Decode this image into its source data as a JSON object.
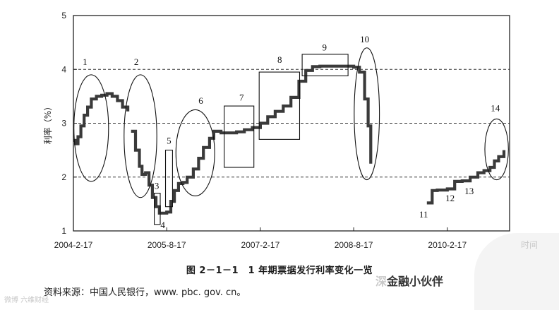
{
  "chart_data": {
    "type": "line",
    "title": "",
    "ylabel": "利率（%）",
    "xlabel": "时间",
    "ylim": [
      1,
      5
    ],
    "yticks": [
      1,
      2,
      3,
      4,
      5
    ],
    "grid_y_dashed": [
      2,
      3,
      4
    ],
    "x_tick_labels": [
      "2004-2-17",
      "2005-8-17",
      "2007-2-17",
      "2008-8-17",
      "2010-2-17"
    ],
    "x_tick_dates": [
      "2004-02-17",
      "2005-08-17",
      "2007-02-17",
      "2008-08-17",
      "2010-02-17"
    ],
    "xlim": [
      "2004-02-17",
      "2011-02-17"
    ],
    "series": [
      {
        "values": [
          [
            "2004-02-17",
            2.68
          ],
          [
            "2004-03-01",
            2.62
          ],
          [
            "2004-03-15",
            2.75
          ],
          [
            "2004-04-01",
            2.95
          ],
          [
            "2004-04-20",
            3.15
          ],
          [
            "2004-05-10",
            3.3
          ],
          [
            "2004-06-01",
            3.45
          ],
          [
            "2004-07-01",
            3.5
          ],
          [
            "2004-08-01",
            3.52
          ],
          [
            "2004-09-01",
            3.55
          ],
          [
            "2004-10-01",
            3.5
          ],
          [
            "2004-11-01",
            3.42
          ],
          [
            "2004-12-01",
            3.3
          ],
          [
            "2005-01-01",
            3.22
          ]
        ]
      },
      {
        "values": [
          [
            "2005-01-20",
            2.85
          ],
          [
            "2005-02-15",
            2.5
          ],
          [
            "2005-03-10",
            2.2
          ],
          [
            "2005-03-25",
            2.05
          ],
          [
            "2005-04-15",
            2.08
          ],
          [
            "2005-05-05",
            1.85
          ],
          [
            "2005-05-25",
            1.62
          ],
          [
            "2005-06-15",
            1.45
          ],
          [
            "2005-07-05",
            1.33
          ],
          [
            "2005-08-01",
            1.33
          ],
          [
            "2005-08-17",
            1.35
          ],
          [
            "2005-09-10",
            1.55
          ],
          [
            "2005-10-01",
            1.75
          ],
          [
            "2005-10-25",
            1.88
          ],
          [
            "2005-11-20",
            1.9
          ],
          [
            "2005-12-15",
            2.0
          ],
          [
            "2006-01-20",
            2.15
          ],
          [
            "2006-02-20",
            2.35
          ],
          [
            "2006-03-20",
            2.55
          ],
          [
            "2006-04-25",
            2.72
          ],
          [
            "2006-05-20",
            2.85
          ],
          [
            "2006-07-01",
            2.82
          ],
          [
            "2006-08-15",
            2.82
          ],
          [
            "2006-09-30",
            2.84
          ],
          [
            "2006-11-15",
            2.88
          ],
          [
            "2007-01-01",
            2.92
          ],
          [
            "2007-02-17",
            3.0
          ],
          [
            "2007-04-01",
            3.12
          ],
          [
            "2007-05-15",
            3.22
          ],
          [
            "2007-07-01",
            3.32
          ],
          [
            "2007-08-15",
            3.48
          ],
          [
            "2007-10-01",
            3.78
          ],
          [
            "2007-11-10",
            3.98
          ],
          [
            "2007-12-20",
            4.05
          ],
          [
            "2008-02-01",
            4.06
          ],
          [
            "2008-04-01",
            4.06
          ],
          [
            "2008-06-01",
            4.06
          ],
          [
            "2008-08-17",
            4.04
          ],
          [
            "2008-09-20",
            3.95
          ],
          [
            "2008-10-20",
            3.45
          ],
          [
            "2008-11-10",
            2.95
          ],
          [
            "2008-11-25",
            2.25
          ]
        ]
      },
      {
        "values": [
          [
            "2009-10-20",
            1.52
          ],
          [
            "2009-11-20",
            1.75
          ],
          [
            "2009-12-20",
            1.76
          ],
          [
            "2010-02-17",
            1.78
          ],
          [
            "2010-04-01",
            1.92
          ],
          [
            "2010-05-15",
            1.93
          ],
          [
            "2010-07-01",
            2.0
          ],
          [
            "2010-08-15",
            2.08
          ],
          [
            "2010-09-20",
            2.12
          ],
          [
            "2010-10-25",
            2.18
          ],
          [
            "2010-11-20",
            2.3
          ],
          [
            "2010-12-15",
            2.38
          ],
          [
            "2011-01-15",
            2.5
          ]
        ]
      }
    ],
    "annotations": [
      {
        "label": "1",
        "shape": "ellipse",
        "from": "2004-02-20",
        "to": "2004-09-10",
        "y0": 1.92,
        "y1": 3.9,
        "label_at": [
          "2004-04-25",
          4.08
        ]
      },
      {
        "label": "2",
        "shape": "ellipse",
        "from": "2004-12-10",
        "to": "2005-06-20",
        "y0": 1.62,
        "y1": 3.9,
        "label_at": [
          "2005-02-20",
          4.08
        ]
      },
      {
        "label": "3",
        "shape": "box",
        "from": "2005-06-05",
        "to": "2005-07-10",
        "y0": 1.12,
        "y1": 1.7,
        "label_at": [
          "2005-06-20",
          1.78
        ]
      },
      {
        "label": "4",
        "shape": "none",
        "label_at": [
          "2005-07-25",
          1.05
        ]
      },
      {
        "label": "5",
        "shape": "box",
        "from": "2005-08-10",
        "to": "2005-09-20",
        "y0": 1.45,
        "y1": 2.5,
        "label_at": [
          "2005-08-30",
          2.62
        ]
      },
      {
        "label": "6",
        "shape": "ellipse",
        "from": "2005-10-10",
        "to": "2006-05-25",
        "y0": 1.65,
        "y1": 3.25,
        "label_at": [
          "2006-03-05",
          3.36
        ]
      },
      {
        "label": "7",
        "shape": "box",
        "from": "2006-07-20",
        "to": "2007-01-10",
        "y0": 2.18,
        "y1": 3.32,
        "label_at": [
          "2006-10-30",
          3.42
        ]
      },
      {
        "label": "8",
        "shape": "box",
        "from": "2007-02-10",
        "to": "2007-10-05",
        "y0": 2.7,
        "y1": 3.95,
        "label_at": [
          "2007-06-10",
          4.12
        ]
      },
      {
        "label": "9",
        "shape": "box",
        "from": "2007-10-20",
        "to": "2008-07-15",
        "y0": 3.88,
        "y1": 4.28,
        "label_at": [
          "2008-02-28",
          4.35
        ]
      },
      {
        "label": "10",
        "shape": "ellipse",
        "from": "2008-08-20",
        "to": "2009-01-15",
        "y0": 1.95,
        "y1": 4.4,
        "label_at": [
          "2008-10-20",
          4.5
        ]
      },
      {
        "label": "11",
        "shape": "none",
        "label_at": [
          "2009-10-01",
          1.25
        ]
      },
      {
        "label": "12",
        "shape": "none",
        "label_at": [
          "2010-03-05",
          1.55
        ]
      },
      {
        "label": "13",
        "shape": "none",
        "label_at": [
          "2010-06-25",
          1.68
        ]
      },
      {
        "label": "14",
        "shape": "ellipse",
        "from": "2010-09-25",
        "to": "2011-02-10",
        "y0": 1.95,
        "y1": 3.08,
        "label_at": [
          "2010-11-25",
          3.22
        ]
      }
    ]
  },
  "caption": "图 2－1－1　1 年期票据发行利率变化一览",
  "source": "资料来源：中国人民银行，www. pbc. gov. cn。",
  "watermark_left": "微博 六维财经",
  "watermark_right_faded": "深",
  "watermark_right": "金融小伙伴"
}
